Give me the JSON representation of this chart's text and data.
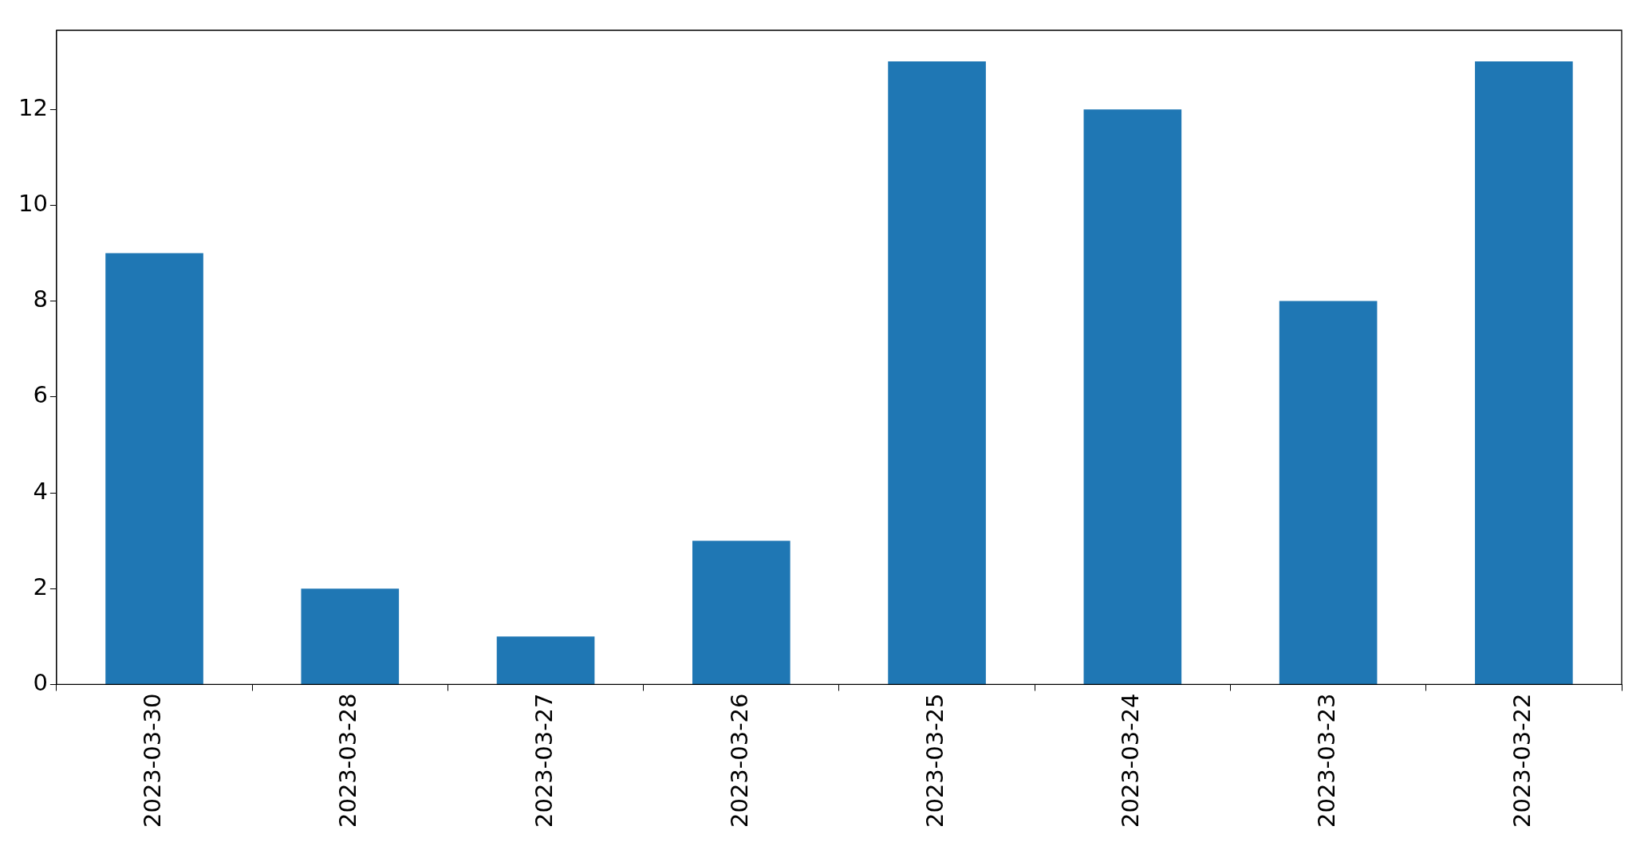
{
  "chart_data": {
    "type": "bar",
    "categories": [
      "2023-03-30",
      "2023-03-28",
      "2023-03-27",
      "2023-03-26",
      "2023-03-25",
      "2023-03-24",
      "2023-03-23",
      "2023-03-22"
    ],
    "values": [
      9,
      2,
      1,
      3,
      13,
      12,
      8,
      13
    ],
    "color": "#1f77b4",
    "ylim": [
      0,
      13.65
    ],
    "yticks": [
      0,
      2,
      4,
      6,
      8,
      10,
      12
    ],
    "grid": false,
    "legend": false
  }
}
